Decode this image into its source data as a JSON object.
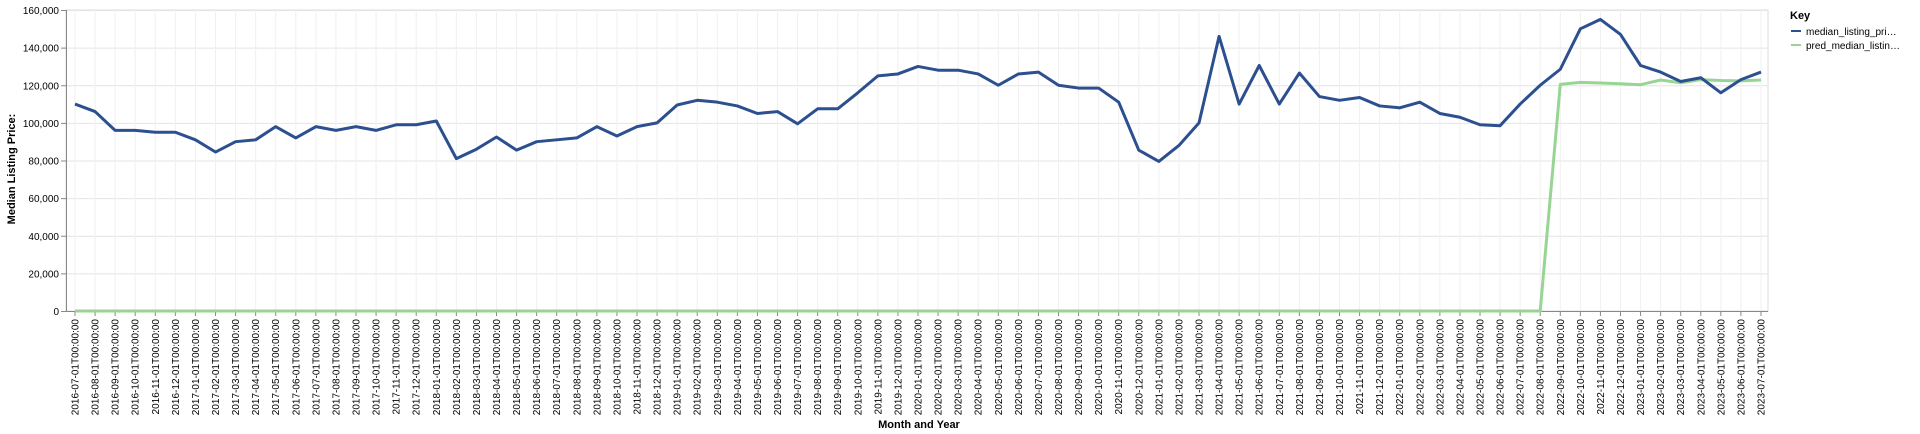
{
  "chart_data": {
    "type": "line",
    "xlabel": "Month and Year",
    "ylabel": "Median Listing Price:",
    "ylim": [
      0,
      160000
    ],
    "y_ticks": [
      "0",
      "20,000",
      "40,000",
      "60,000",
      "80,000",
      "100,000",
      "120,000",
      "140,000",
      "160,000"
    ],
    "grid": true,
    "legend": {
      "title": "Key",
      "placement": "top-right",
      "labels": [
        "median_listing_pri…",
        "pred_median_listin…"
      ]
    },
    "colors": {
      "median_listing_price": "#2c4f8f",
      "pred_median_listing_price": "#98d594",
      "grid": "#e4e4e4",
      "axis": "#888888"
    },
    "x": [
      "2016-07-01T00:00:00",
      "2016-08-01T00:00:00",
      "2016-09-01T00:00:00",
      "2016-10-01T00:00:00",
      "2016-11-01T00:00:00",
      "2016-12-01T00:00:00",
      "2017-01-01T00:00:00",
      "2017-02-01T00:00:00",
      "2017-03-01T00:00:00",
      "2017-04-01T00:00:00",
      "2017-05-01T00:00:00",
      "2017-06-01T00:00:00",
      "2017-07-01T00:00:00",
      "2017-08-01T00:00:00",
      "2017-09-01T00:00:00",
      "2017-10-01T00:00:00",
      "2017-11-01T00:00:00",
      "2017-12-01T00:00:00",
      "2018-01-01T00:00:00",
      "2018-02-01T00:00:00",
      "2018-03-01T00:00:00",
      "2018-04-01T00:00:00",
      "2018-05-01T00:00:00",
      "2018-06-01T00:00:00",
      "2018-07-01T00:00:00",
      "2018-08-01T00:00:00",
      "2018-09-01T00:00:00",
      "2018-10-01T00:00:00",
      "2018-11-01T00:00:00",
      "2018-12-01T00:00:00",
      "2019-01-01T00:00:00",
      "2019-02-01T00:00:00",
      "2019-03-01T00:00:00",
      "2019-04-01T00:00:00",
      "2019-05-01T00:00:00",
      "2019-06-01T00:00:00",
      "2019-07-01T00:00:00",
      "2019-08-01T00:00:00",
      "2019-09-01T00:00:00",
      "2019-10-01T00:00:00",
      "2019-11-01T00:00:00",
      "2019-12-01T00:00:00",
      "2020-01-01T00:00:00",
      "2020-02-01T00:00:00",
      "2020-03-01T00:00:00",
      "2020-04-01T00:00:00",
      "2020-05-01T00:00:00",
      "2020-06-01T00:00:00",
      "2020-07-01T00:00:00",
      "2020-08-01T00:00:00",
      "2020-09-01T00:00:00",
      "2020-10-01T00:00:00",
      "2020-11-01T00:00:00",
      "2020-12-01T00:00:00",
      "2021-01-01T00:00:00",
      "2021-02-01T00:00:00",
      "2021-03-01T00:00:00",
      "2021-04-01T00:00:00",
      "2021-05-01T00:00:00",
      "2021-06-01T00:00:00",
      "2021-07-01T00:00:00",
      "2021-08-01T00:00:00",
      "2021-09-01T00:00:00",
      "2021-10-01T00:00:00",
      "2021-11-01T00:00:00",
      "2021-12-01T00:00:00",
      "2022-01-01T00:00:00",
      "2022-02-01T00:00:00",
      "2022-03-01T00:00:00",
      "2022-04-01T00:00:00",
      "2022-05-01T00:00:00",
      "2022-06-01T00:00:00",
      "2022-07-01T00:00:00",
      "2022-08-01T00:00:00",
      "2022-09-01T00:00:00",
      "2022-10-01T00:00:00",
      "2022-11-01T00:00:00",
      "2022-12-01T00:00:00",
      "2023-01-01T00:00:00",
      "2023-02-01T00:00:00",
      "2023-03-01T00:00:00",
      "2023-04-01T00:00:00",
      "2023-05-01T00:00:00",
      "2023-06-01T00:00:00",
      "2023-07-01T00:00:00"
    ],
    "series": [
      {
        "name": "median_listing_pri…",
        "values": [
          110000,
          106000,
          96000,
          96000,
          95000,
          95000,
          91000,
          84500,
          90000,
          91000,
          98000,
          92000,
          98000,
          96000,
          98000,
          96000,
          99000,
          99000,
          101000,
          81000,
          86000,
          92500,
          85500,
          90000,
          91000,
          92000,
          98000,
          93000,
          98000,
          100000,
          109500,
          112000,
          111000,
          109000,
          105000,
          106000,
          99500,
          107500,
          107500,
          116000,
          125000,
          126000,
          130000,
          128000,
          128000,
          126000,
          120000,
          126000,
          127000,
          120000,
          118500,
          118500,
          111000,
          85500,
          79500,
          88000,
          100000,
          146000,
          110000,
          130500,
          110000,
          126500,
          114000,
          112000,
          113500,
          109000,
          108000,
          111000,
          105000,
          103000,
          99000,
          98500,
          110000,
          120000,
          128500,
          150000,
          155000,
          147000,
          130500,
          127000,
          122000,
          124000,
          116000,
          123000,
          127000
        ]
      },
      {
        "name": "pred_median_listin…",
        "values": [
          0,
          0,
          0,
          0,
          0,
          0,
          0,
          0,
          0,
          0,
          0,
          0,
          0,
          0,
          0,
          0,
          0,
          0,
          0,
          0,
          0,
          0,
          0,
          0,
          0,
          0,
          0,
          0,
          0,
          0,
          0,
          0,
          0,
          0,
          0,
          0,
          0,
          0,
          0,
          0,
          0,
          0,
          0,
          0,
          0,
          0,
          0,
          0,
          0,
          0,
          0,
          0,
          0,
          0,
          0,
          0,
          0,
          0,
          0,
          0,
          0,
          0,
          0,
          0,
          0,
          0,
          0,
          0,
          0,
          0,
          0,
          0,
          0,
          0,
          120500,
          121500,
          121200,
          120800,
          120300,
          122800,
          121300,
          123000,
          122500,
          122300,
          122800
        ]
      }
    ]
  }
}
